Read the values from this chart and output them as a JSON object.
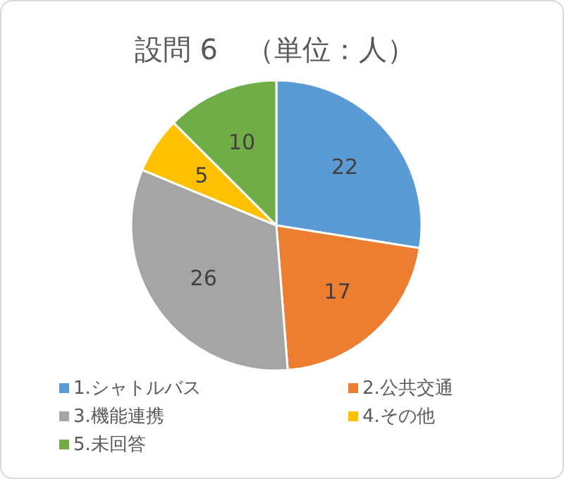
{
  "chart_data": {
    "type": "pie",
    "title": "設問 6　（単位：人）",
    "categories": [
      "1.シャトルバス",
      "2.公共交通",
      "3.機能連携",
      "4.その他",
      "5.未回答"
    ],
    "values": [
      22,
      17,
      26,
      5,
      10
    ],
    "colors": [
      "#5b9bd5",
      "#ed7d31",
      "#a5a5a5",
      "#ffc000",
      "#70ad47"
    ],
    "data_labels": true,
    "legend": "bottom"
  }
}
